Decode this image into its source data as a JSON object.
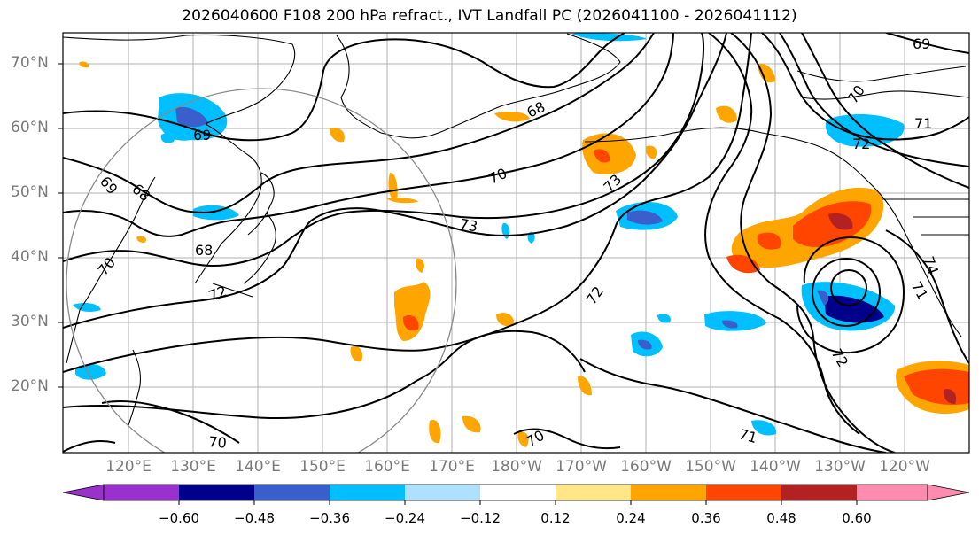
{
  "title": "2026040600 F108 200 hPa refract., IVT Landfall PC (2026041100 - 2026041112)",
  "map": {
    "lat_labels": [
      "70°N",
      "60°N",
      "50°N",
      "40°N",
      "30°N",
      "20°N"
    ],
    "lon_labels": [
      "120°E",
      "130°E",
      "140°E",
      "150°E",
      "160°E",
      "170°E",
      "180°W",
      "170°W",
      "160°W",
      "150°W",
      "140°W",
      "130°W",
      "120°W"
    ],
    "contour_labels": [
      "69",
      "68",
      "70",
      "73",
      "72",
      "71",
      "74",
      "69",
      "68",
      "70",
      "71",
      "72",
      "73",
      "69",
      "70",
      "70",
      "71",
      "72",
      "72",
      "70",
      "68"
    ],
    "gridlines": true
  },
  "colorbar": {
    "ticks": [
      "−0.60",
      "−0.48",
      "−0.36",
      "−0.24",
      "−0.12",
      "0.12",
      "0.24",
      "0.36",
      "0.48",
      "0.60"
    ],
    "colors": [
      "#9932cc",
      "#00008b",
      "#3a5fcd",
      "#00bfff",
      "#b0e0ff",
      "#ffffff",
      "#ffe787",
      "#ffa500",
      "#ff4500",
      "#b22222",
      "#ff8bb0"
    ]
  }
}
